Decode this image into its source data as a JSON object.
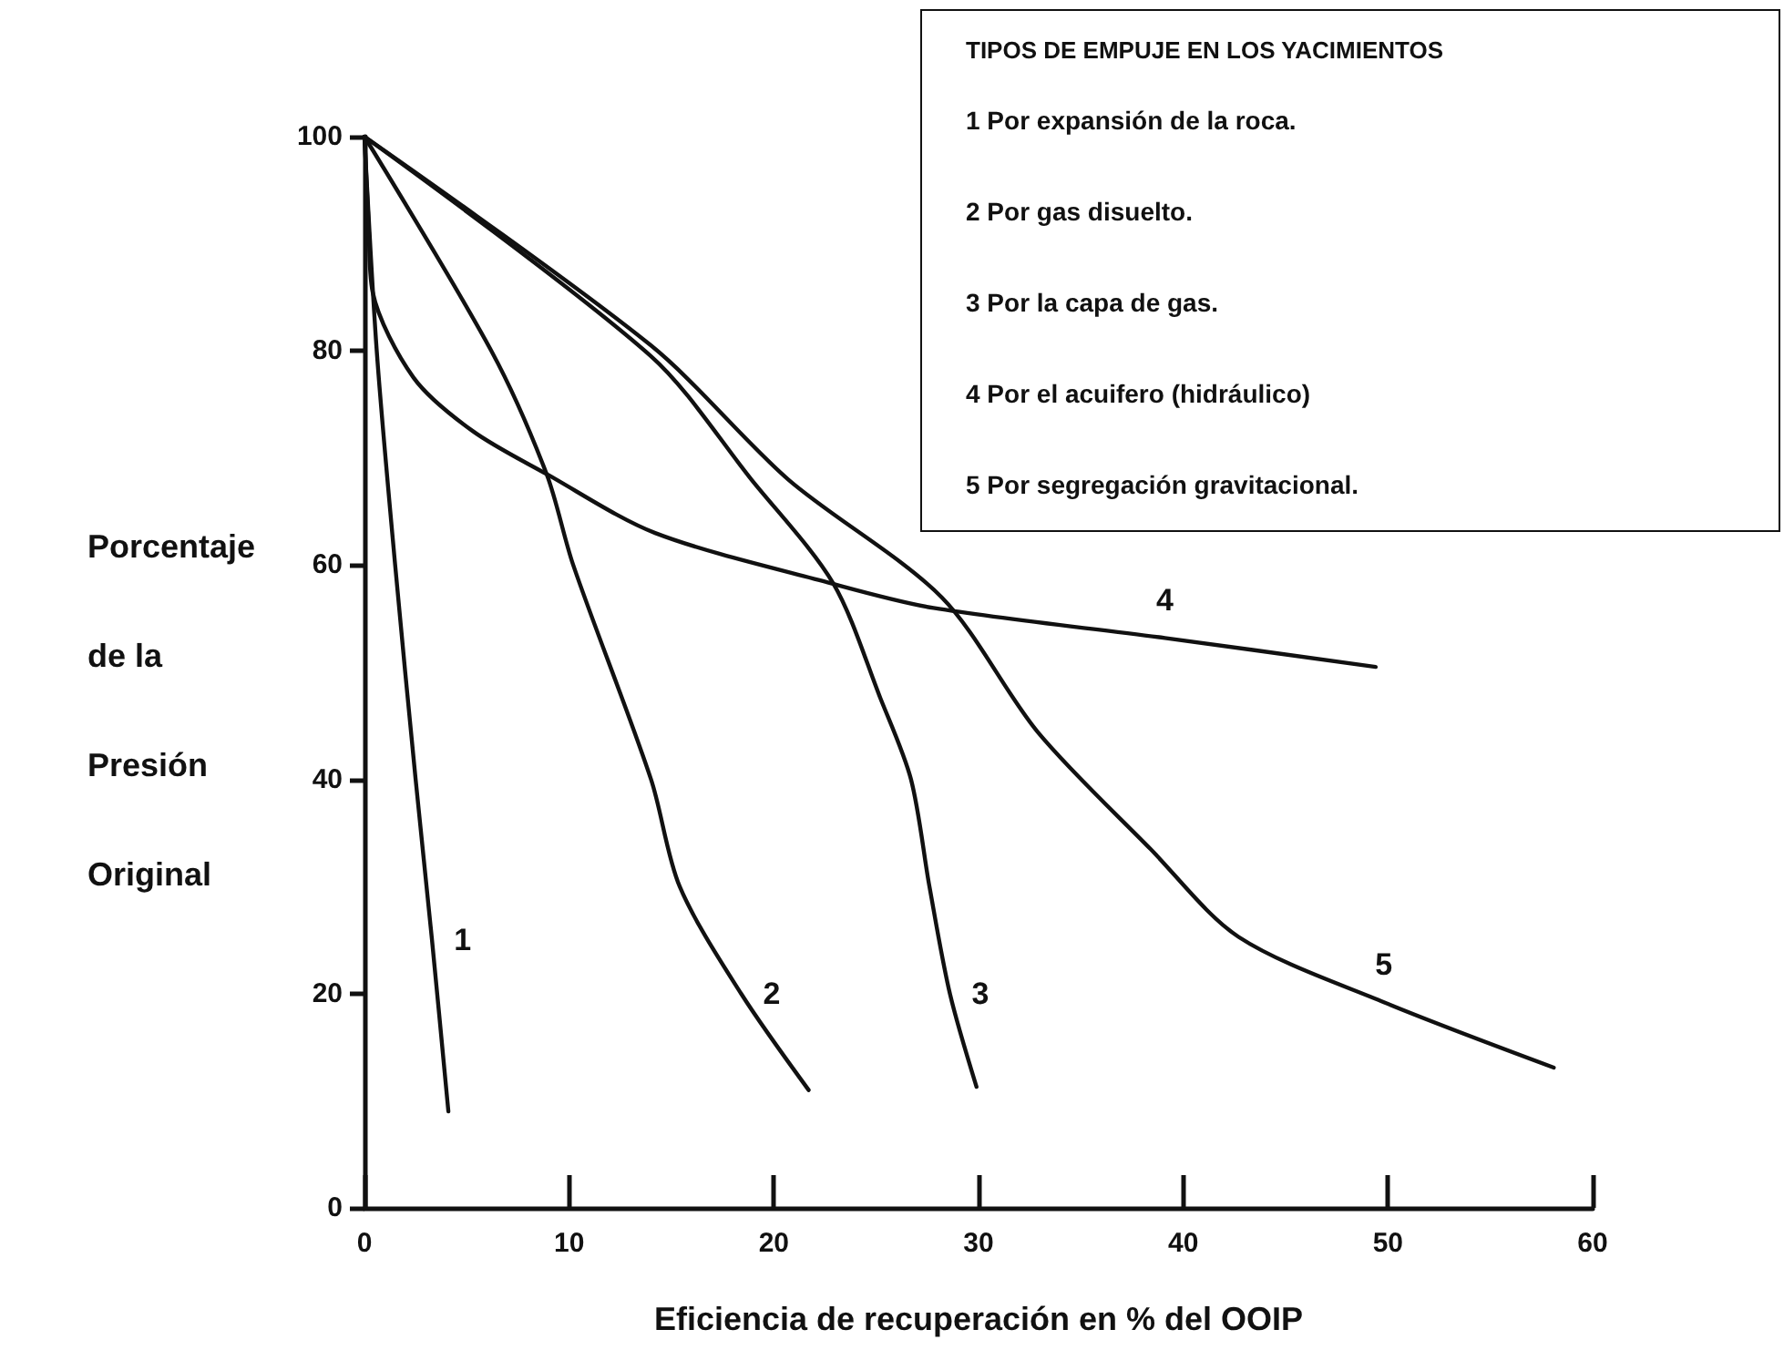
{
  "chart_data": {
    "type": "line",
    "xlabel": "Eficiencia de recuperación en % del OOIP",
    "ylabel": "Porcentaje\nde la\nPresión\nOriginal",
    "legend_title": "TIPOS DE EMPUJE EN LOS YACIMIENTOS",
    "annotations": [
      "1 Por expansión de la roca.",
      "2 Por gas disuelto.",
      "3 Por la capa de gas.",
      "4 Por el acuifero (hidráulico)",
      "5 Por segregación gravitacional."
    ],
    "xlim": [
      0,
      60
    ],
    "xticks": [
      0,
      10,
      20,
      30,
      40,
      50,
      60
    ],
    "ylim": [
      0,
      100
    ],
    "yticks": [
      0,
      20,
      40,
      60,
      80,
      100
    ],
    "grid": false,
    "legend": false,
    "line_style": "solid",
    "series": [
      {
        "name": "1",
        "color": "#111111",
        "x": [
          0,
          0.6,
          1.5,
          2.5,
          3.3,
          4.1
        ],
        "values": [
          100,
          80,
          60,
          40,
          25,
          9
        ]
      },
      {
        "name": "2",
        "color": "#111111",
        "x": [
          0,
          6.2,
          8.9,
          10.2,
          14,
          15.4,
          18.4,
          21.7
        ],
        "values": [
          100,
          80,
          68.5,
          60,
          40,
          30,
          20,
          11
        ]
      },
      {
        "name": "3",
        "color": "#111111",
        "x": [
          0,
          14,
          18.9,
          22.9,
          25.2,
          26.7,
          27.6,
          28.6,
          29.9
        ],
        "values": [
          100,
          79.5,
          68,
          58.3,
          47.6,
          40,
          30,
          20,
          11.3
        ]
      },
      {
        "name": "4",
        "color": "#111111",
        "x": [
          0,
          0.2,
          0.4,
          2.4,
          5.3,
          8.9,
          14.2,
          22.8,
          27.8,
          39.1,
          49.4
        ],
        "values": [
          100,
          92,
          85.5,
          77.5,
          72.5,
          68.5,
          63,
          58.3,
          56,
          53.2,
          50.5
        ]
      },
      {
        "name": "5",
        "color": "#111111",
        "x": [
          0,
          14,
          20.7,
          28.2,
          32.9,
          38.4,
          42.7,
          49.8,
          58.1
        ],
        "values": [
          100,
          80.5,
          68,
          57,
          44.4,
          33.5,
          25.3,
          19.2,
          13.1
        ]
      }
    ]
  }
}
